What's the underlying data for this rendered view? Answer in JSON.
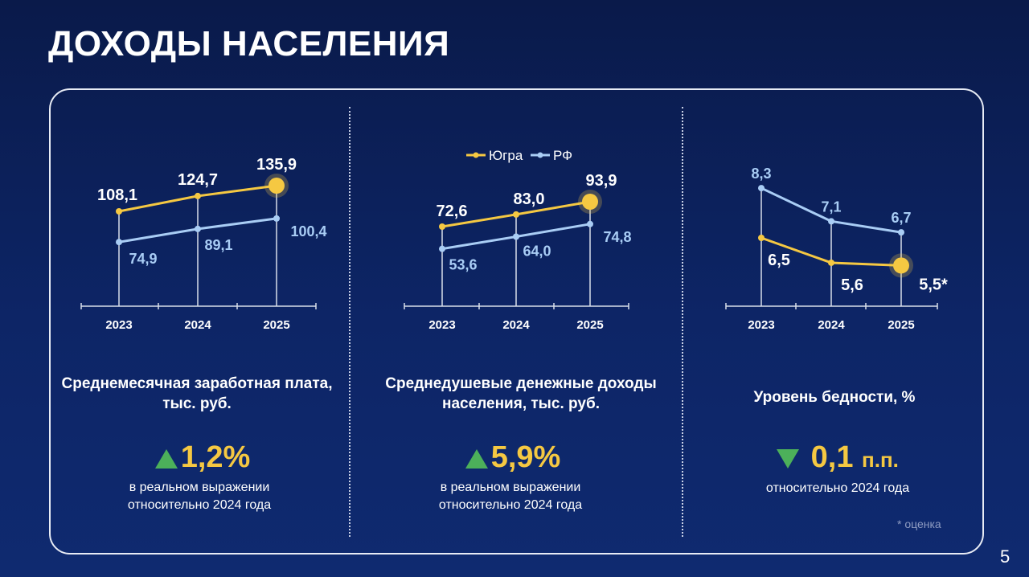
{
  "title": "ДОХОДЫ НАСЕЛЕНИЯ",
  "page_number": "5",
  "footnote": "* оценка",
  "colors": {
    "yugra": "#f5c842",
    "rf": "#a9cdf5",
    "up": "#4cb05a",
    "background": "#0d2566"
  },
  "legend": {
    "yugra": "Югра",
    "rf": "РФ"
  },
  "chart_data": [
    {
      "type": "line",
      "categories": [
        "2023",
        "2024",
        "2025"
      ],
      "series": [
        {
          "name": "Югра",
          "values": [
            108.1,
            124.7,
            135.9
          ],
          "labels": [
            "108,1",
            "124,7",
            "135,9"
          ]
        },
        {
          "name": "РФ",
          "values": [
            74.9,
            89.1,
            100.4
          ],
          "labels": [
            "74,9",
            "89,1",
            "100,4"
          ]
        }
      ],
      "caption": "Среднемесячная заработная плата, тыс. руб.",
      "delta": "1,2%",
      "delta_unit": "",
      "direction": "up",
      "note": [
        "в реальном выражении",
        "относительно 2024 года"
      ]
    },
    {
      "type": "line",
      "categories": [
        "2023",
        "2024",
        "2025"
      ],
      "series": [
        {
          "name": "Югра",
          "values": [
            72.6,
            83.0,
            93.9
          ],
          "labels": [
            "72,6",
            "83,0",
            "93,9"
          ]
        },
        {
          "name": "РФ",
          "values": [
            53.6,
            64.0,
            74.8
          ],
          "labels": [
            "53,6",
            "64,0",
            "74,8"
          ]
        }
      ],
      "caption": "Среднедушевые денежные доходы населения, тыс. руб.",
      "delta": "5,9%",
      "delta_unit": "",
      "direction": "up",
      "note": [
        "в реальном выражении",
        "относительно 2024 года"
      ]
    },
    {
      "type": "line",
      "categories": [
        "2023",
        "2024",
        "2025"
      ],
      "series": [
        {
          "name": "Югра",
          "values": [
            6.5,
            5.6,
            5.5
          ],
          "labels": [
            "6,5",
            "5,6",
            "5,5*"
          ]
        },
        {
          "name": "РФ",
          "values": [
            8.3,
            7.1,
            6.7
          ],
          "labels": [
            "8,3",
            "7,1",
            "6,7"
          ]
        }
      ],
      "caption": "Уровень бедности, %",
      "delta": "0,1",
      "delta_unit": "п.п.",
      "direction": "down",
      "note": [
        "относительно 2024 года"
      ]
    }
  ]
}
